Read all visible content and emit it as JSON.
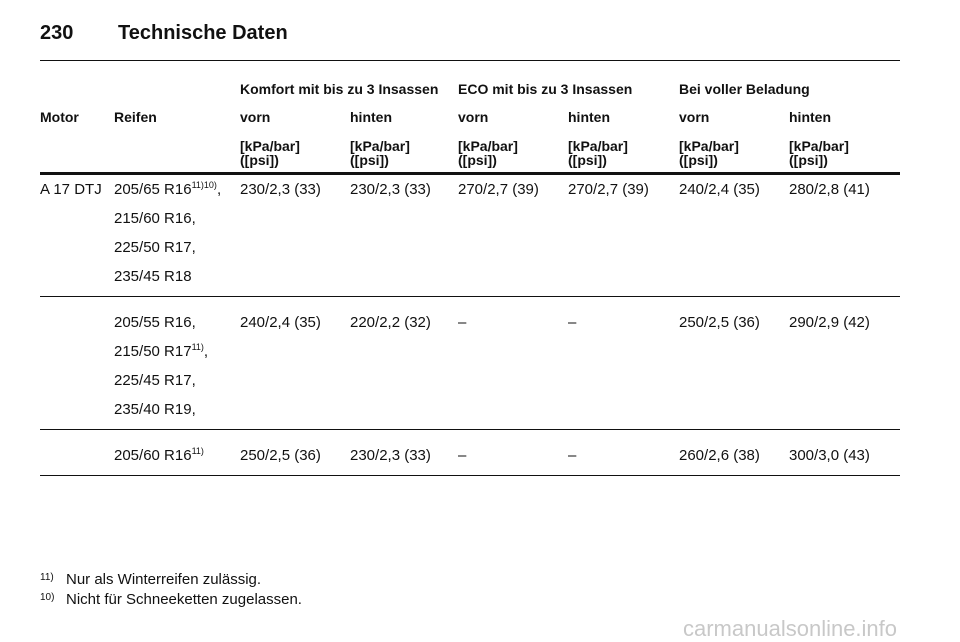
{
  "header": {
    "page_number": "230",
    "title": "Technische Daten"
  },
  "table": {
    "group_headers": [
      "Komfort mit bis zu 3 Insassen",
      "ECO mit bis zu 3 Insassen",
      "Bei voller Beladung"
    ],
    "columns": [
      "Motor",
      "Reifen",
      "vorn",
      "hinten",
      "vorn",
      "hinten",
      "vorn",
      "hinten"
    ],
    "units": [
      [
        "[kPa/bar]",
        "([psi])"
      ],
      [
        "[kPa/bar]",
        "([psi])"
      ],
      [
        "[kPa/bar]",
        "([psi])"
      ],
      [
        "[kPa/bar]",
        "([psi])"
      ],
      [
        "[kPa/bar]",
        "([psi])"
      ],
      [
        "[kPa/bar]",
        "([psi])"
      ]
    ],
    "rows": [
      {
        "motor": "A 17 DTJ",
        "tires": [
          {
            "text": "205/65 R16",
            "sup": "11)10)",
            "suffix": ","
          },
          {
            "text": "215/60 R16,"
          },
          {
            "text": "225/50 R17,"
          },
          {
            "text": "235/45 R18"
          }
        ],
        "pressures": [
          "230/2,3 (33)",
          "230/2,3 (33)",
          "270/2,7 (39)",
          "270/2,7 (39)",
          "240/2,4 (35)",
          "280/2,8 (41)"
        ]
      },
      {
        "tires": [
          {
            "text": "205/55 R16,"
          },
          {
            "text": "215/50 R17",
            "sup": "11)",
            "suffix": ","
          },
          {
            "text": "225/45 R17,"
          },
          {
            "text": "235/40 R19,"
          }
        ],
        "pressures": [
          "240/2,4 (35)",
          "220/2,2 (32)",
          "–",
          "–",
          "250/2,5 (36)",
          "290/2,9 (42)"
        ]
      },
      {
        "tires": [
          {
            "text": "205/60 R16",
            "sup": "11)"
          }
        ],
        "pressures": [
          "250/2,5 (36)",
          "230/2,3 (33)",
          "–",
          "–",
          "260/2,6 (38)",
          "300/3,0 (43)"
        ]
      }
    ]
  },
  "footnotes": [
    {
      "mark": "11)",
      "text": "Nur als Winterreifen zulässig."
    },
    {
      "mark": "10)",
      "text": "Nicht für Schneeketten zugelassen."
    }
  ],
  "watermark": "carmanualsonline.info"
}
